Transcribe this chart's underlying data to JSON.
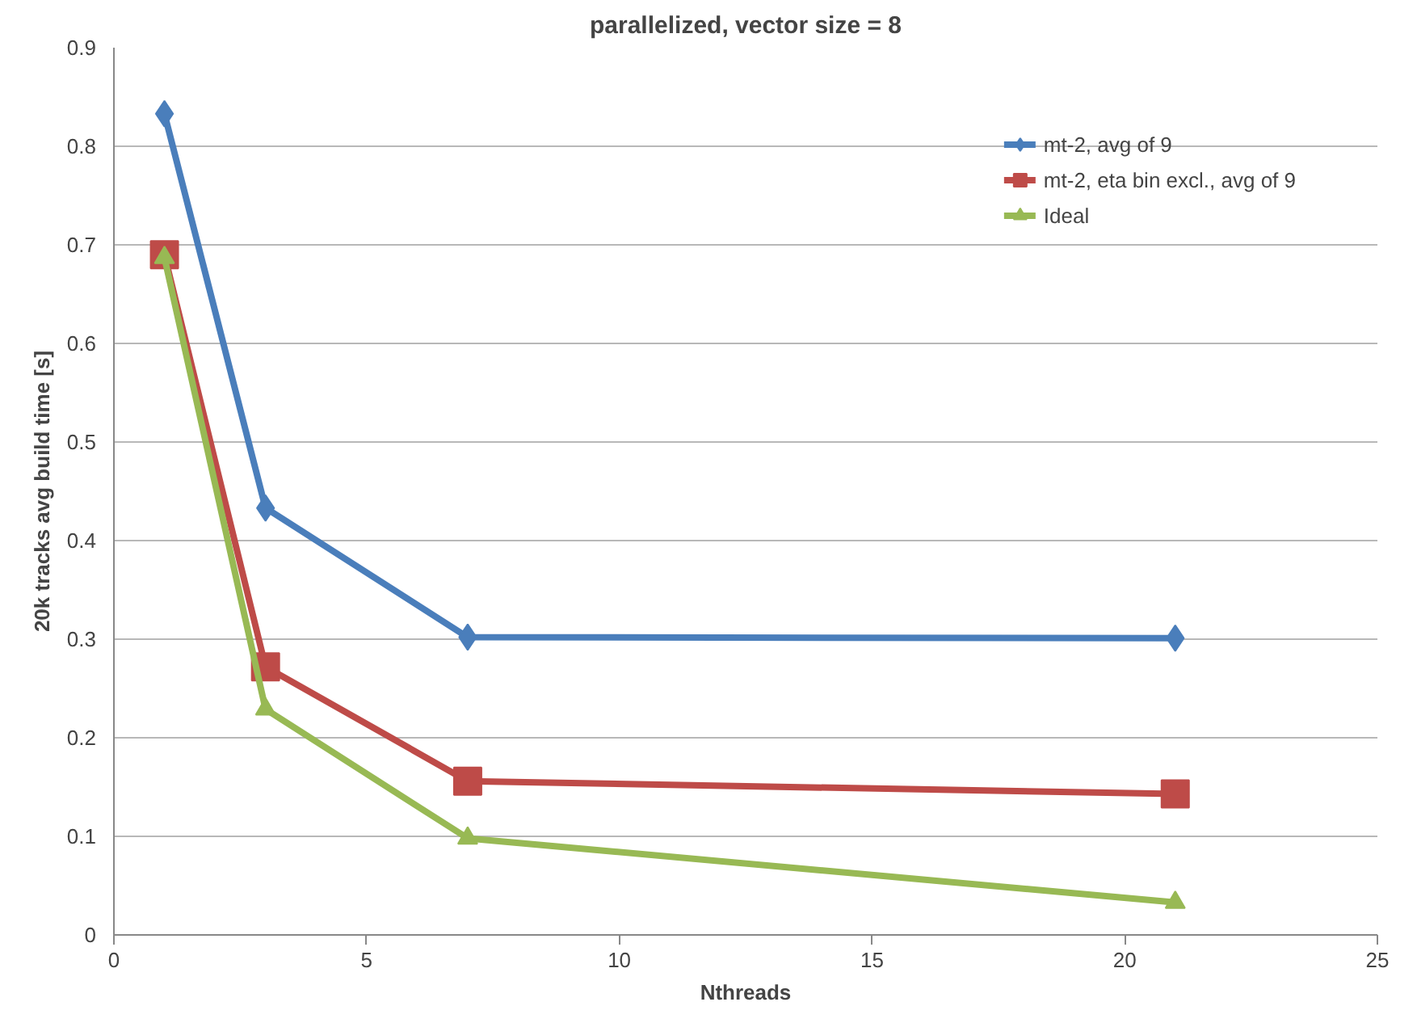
{
  "chart_data": {
    "type": "line",
    "title": "parallelized, vector size = 8",
    "xlabel": "Nthreads",
    "ylabel": "20k tracks avg build time [s]",
    "x": [
      1,
      3,
      7,
      21
    ],
    "series": [
      {
        "name": "mt-2, avg of 9",
        "color": "#4a7ebb",
        "marker": "diamond",
        "values": [
          0.833,
          0.433,
          0.302,
          0.301
        ]
      },
      {
        "name": "mt-2, eta bin excl., avg of 9",
        "color": "#be4b48",
        "marker": "square",
        "values": [
          0.69,
          0.272,
          0.156,
          0.143
        ]
      },
      {
        "name": "Ideal",
        "color": "#98b954",
        "marker": "triangle",
        "values": [
          0.687,
          0.229,
          0.098,
          0.033
        ]
      }
    ],
    "xlim": [
      0,
      25
    ],
    "xticks": [
      0,
      5,
      10,
      15,
      20,
      25
    ],
    "ylim": [
      0,
      0.9
    ],
    "yticks": [
      0,
      0.1,
      0.2,
      0.3,
      0.4,
      0.5,
      0.6,
      0.7,
      0.8,
      0.9
    ],
    "grid": "y",
    "legend": "top right",
    "line_style": "solid"
  }
}
